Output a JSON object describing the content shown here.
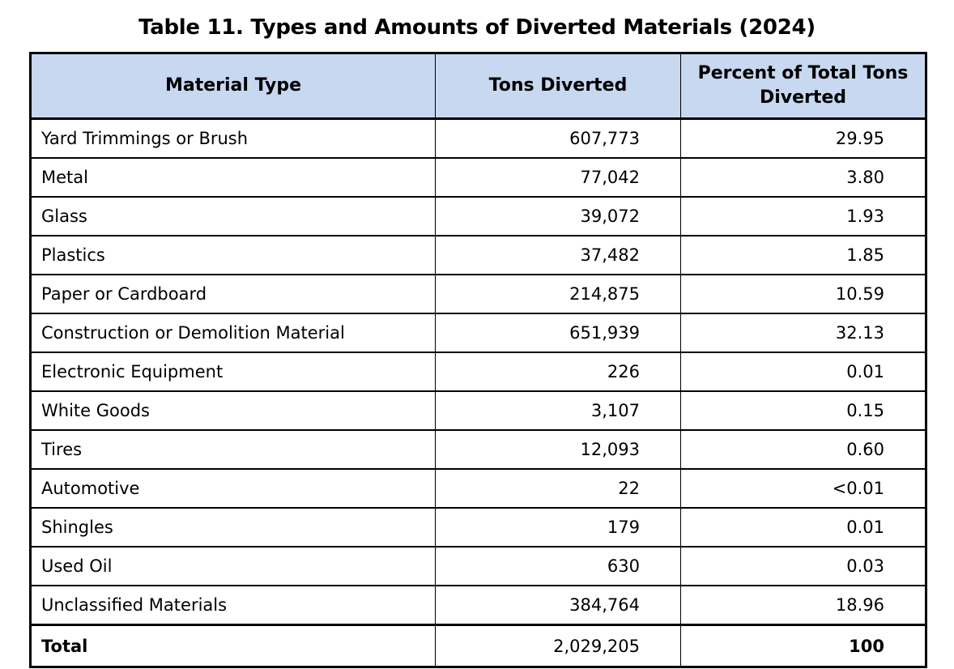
{
  "chart_data": {
    "type": "table",
    "title": "Table 11. Types and Amounts of Diverted Materials (2024)",
    "columns": [
      "Material Type",
      "Tons Diverted",
      "Percent of Total Tons Diverted"
    ],
    "rows": [
      {
        "material": "Yard Trimmings or Brush",
        "tons": "607,773",
        "percent": "29.95"
      },
      {
        "material": "Metal",
        "tons": "77,042",
        "percent": "3.80"
      },
      {
        "material": "Glass",
        "tons": "39,072",
        "percent": "1.93"
      },
      {
        "material": "Plastics",
        "tons": "37,482",
        "percent": "1.85"
      },
      {
        "material": "Paper or Cardboard",
        "tons": "214,875",
        "percent": "10.59"
      },
      {
        "material": "Construction or Demolition Material",
        "tons": "651,939",
        "percent": "32.13"
      },
      {
        "material": "Electronic Equipment",
        "tons": "226",
        "percent": "0.01"
      },
      {
        "material": "White Goods",
        "tons": "3,107",
        "percent": "0.15"
      },
      {
        "material": "Tires",
        "tons": "12,093",
        "percent": "0.60"
      },
      {
        "material": "Automotive",
        "tons": "22",
        "percent": "<0.01"
      },
      {
        "material": "Shingles",
        "tons": "179",
        "percent": "0.01"
      },
      {
        "material": "Used Oil",
        "tons": "630",
        "percent": "0.03"
      },
      {
        "material": "Unclassified Materials",
        "tons": "384,764",
        "percent": "18.96"
      }
    ],
    "total_row": {
      "label": "Total",
      "tons": "2,029,205",
      "percent": "100"
    }
  },
  "styles": {
    "header_bg": "#C7D8F0",
    "border_color": "#000000",
    "text_color": "#000000"
  }
}
